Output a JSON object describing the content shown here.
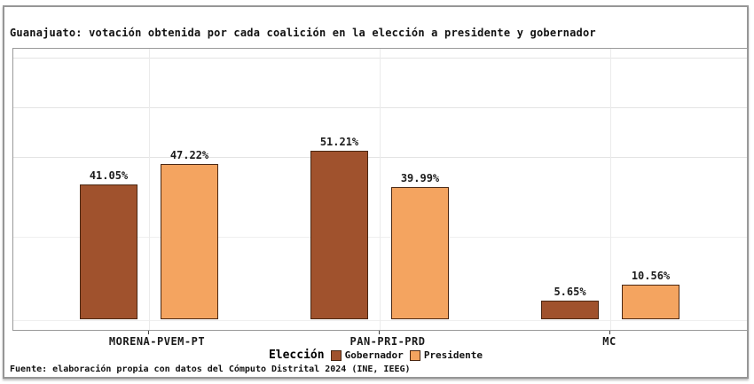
{
  "title": "Guanajuato: votación obtenida por cada coalición en la elección a presidente y gobernador",
  "source_note": "Fuente: elaboración propia con datos del Cómputo Distrital 2024 (INE, IEEG)",
  "legend": {
    "title": "Elección",
    "items": [
      {
        "label": "Gobernador",
        "color": "#A0522D"
      },
      {
        "label": "Presidente",
        "color": "#F4A460"
      }
    ]
  },
  "colors": {
    "gobernador_fill": "#A0522D",
    "presidente_fill": "#F4A460",
    "bar_border": "#4a2712",
    "grid": "#e3e3e3"
  },
  "chart_data": {
    "type": "bar",
    "title": "Guanajuato: votación obtenida por cada coalición en la elección a presidente y gobernador",
    "categories": [
      "MORENA-PVEM-PT",
      "PAN-PRI-PRD",
      "MC"
    ],
    "series": [
      {
        "name": "Gobernador",
        "color": "#A0522D",
        "values": [
          41.05,
          51.21,
          5.65
        ]
      },
      {
        "name": "Presidente",
        "color": "#F4A460",
        "values": [
          47.22,
          39.99,
          10.56
        ]
      }
    ],
    "value_suffix": "%",
    "xlabel": "",
    "ylabel": "",
    "ylim": [
      0,
      82
    ],
    "grid": true,
    "legend_title": "Elección",
    "legend_position": "bottom"
  }
}
